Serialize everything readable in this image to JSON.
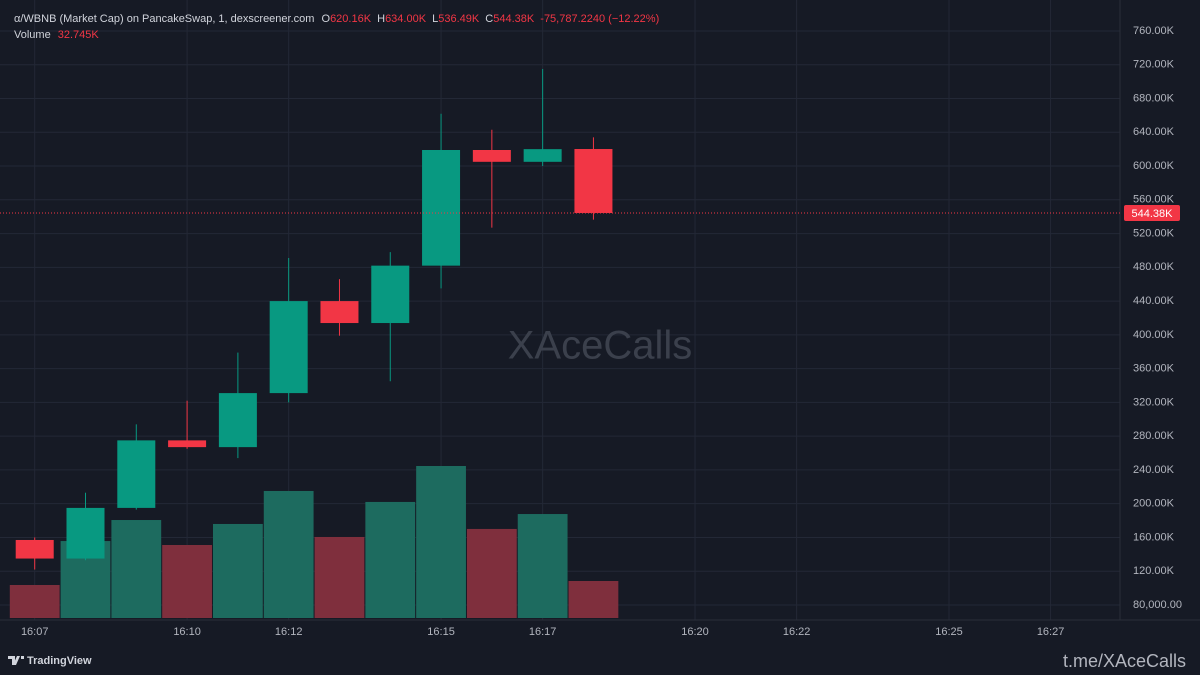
{
  "header": {
    "title": "α/WBNB (Market Cap) on PancakeSwap, 1, dexscreener.com",
    "ohlc": [
      {
        "key": "O",
        "value": "620.16K"
      },
      {
        "key": "H",
        "value": "634.00K"
      },
      {
        "key": "L",
        "value": "536.49K"
      },
      {
        "key": "C",
        "value": "544.38K"
      }
    ],
    "change": "-75,787.2240 (−12.22%)",
    "volume_label": "Volume",
    "volume_value": "32.745K"
  },
  "chart_data": {
    "type": "candlestick",
    "x": [
      "16:07",
      "16:08",
      "16:09",
      "16:10",
      "16:11",
      "16:12",
      "16:13",
      "16:14",
      "16:15",
      "16:16",
      "16:17",
      "16:18"
    ],
    "open": [
      157000,
      135000,
      195000,
      275000,
      267000,
      331000,
      440000,
      414000,
      482000,
      619000,
      605000,
      620160
    ],
    "high": [
      160000,
      213000,
      294000,
      322000,
      379000,
      491000,
      466000,
      498000,
      662000,
      643000,
      715000,
      634000
    ],
    "low": [
      122000,
      133000,
      193000,
      265000,
      254000,
      320000,
      399000,
      345000,
      455000,
      527000,
      600000,
      536490
    ],
    "close": [
      135000,
      195000,
      275000,
      267000,
      331000,
      440000,
      414000,
      482000,
      619000,
      605000,
      620000,
      544380
    ],
    "volume": [
      29200,
      68100,
      86700,
      64600,
      83200,
      112400,
      71700,
      102700,
      134500,
      78800,
      92000,
      32745
    ],
    "up_color": "#089981",
    "down_color": "#f23645",
    "volume_up_color": "#1d6b5f",
    "volume_down_color": "#7f2f3d",
    "ylim": [
      62200,
      796700
    ],
    "yticks": [
      {
        "value": 760000,
        "label": "760.00K"
      },
      {
        "value": 720000,
        "label": "720.00K"
      },
      {
        "value": 680000,
        "label": "680.00K"
      },
      {
        "value": 640000,
        "label": "640.00K"
      },
      {
        "value": 600000,
        "label": "600.00K"
      },
      {
        "value": 560000,
        "label": "560.00K"
      },
      {
        "value": 520000,
        "label": "520.00K"
      },
      {
        "value": 480000,
        "label": "480.00K"
      },
      {
        "value": 440000,
        "label": "440.00K"
      },
      {
        "value": 400000,
        "label": "400.00K"
      },
      {
        "value": 360000,
        "label": "360.00K"
      },
      {
        "value": 320000,
        "label": "320.00K"
      },
      {
        "value": 280000,
        "label": "280.00K"
      },
      {
        "value": 240000,
        "label": "240.00K"
      },
      {
        "value": 200000,
        "label": "200.00K"
      },
      {
        "value": 160000,
        "label": "160.00K"
      },
      {
        "value": 120000,
        "label": "120.00K"
      },
      {
        "value": 80000,
        "label": "80,000.00"
      }
    ],
    "xlim": [
      "16:06:19",
      "16:28:22"
    ],
    "xticks": [
      "16:07",
      "16:10",
      "16:12",
      "16:15",
      "16:17",
      "16:20",
      "16:22",
      "16:25",
      "16:27"
    ],
    "last_price": {
      "value": 544380,
      "label": "544.38K"
    },
    "grid": true
  },
  "watermark": "XAceCalls",
  "branding": "TradingView",
  "footer": "t.me/XAceCalls"
}
